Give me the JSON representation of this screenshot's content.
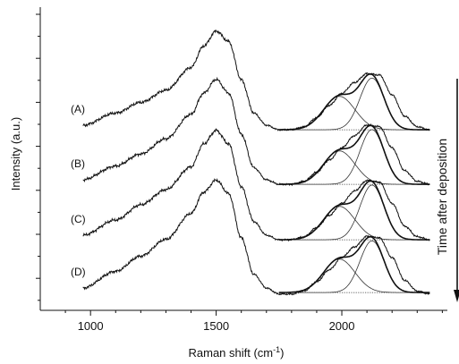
{
  "chart_data": {
    "type": "line",
    "title": "",
    "xlabel": "Raman shift (cm",
    "xlabel_sup": "-1",
    "xlabel_close": ")",
    "ylabel": "Intensity (a.u.)",
    "xlim": [
      800,
      2420
    ],
    "x_ticks": [
      1000,
      1500,
      2000
    ],
    "x_tick_labels": [
      "1000",
      "1500",
      "2000"
    ],
    "y_ticks_show_labels": false,
    "grid": false,
    "annotation": "Time after deposition",
    "annotation_arrow": "down",
    "series": [
      {
        "name": "(A)",
        "x": [
          970,
          1100,
          1200,
          1300,
          1400,
          1450,
          1500,
          1550,
          1600,
          1650,
          1700,
          1750,
          1800,
          1850,
          1900,
          1950,
          2000,
          2050,
          2100,
          2150,
          2200,
          2250,
          2300,
          2350
        ],
        "y": [
          0.0,
          0.08,
          0.15,
          0.23,
          0.38,
          0.52,
          0.62,
          0.55,
          0.3,
          0.08,
          0.0,
          -0.03,
          -0.03,
          -0.01,
          0.05,
          0.13,
          0.21,
          0.28,
          0.34,
          0.33,
          0.2,
          0.06,
          -0.01,
          -0.03
        ],
        "fit_peaks": [
          {
            "center": 1990,
            "amplitude": 0.19
          },
          {
            "center": 2120,
            "amplitude": 0.31
          }
        ]
      },
      {
        "name": "(B)",
        "x": [
          970,
          1100,
          1200,
          1300,
          1400,
          1450,
          1500,
          1550,
          1600,
          1650,
          1700,
          1750,
          1800,
          1850,
          1900,
          1950,
          2000,
          2050,
          2100,
          2150,
          2200,
          2250,
          2300,
          2350
        ],
        "y": [
          0.0,
          0.09,
          0.17,
          0.27,
          0.43,
          0.57,
          0.66,
          0.57,
          0.3,
          0.08,
          0.0,
          -0.03,
          -0.03,
          -0.01,
          0.05,
          0.13,
          0.21,
          0.29,
          0.36,
          0.35,
          0.21,
          0.06,
          -0.01,
          -0.03
        ],
        "fit_peaks": [
          {
            "center": 1990,
            "amplitude": 0.19
          },
          {
            "center": 2120,
            "amplitude": 0.33
          }
        ]
      },
      {
        "name": "(C)",
        "x": [
          970,
          1100,
          1200,
          1300,
          1400,
          1450,
          1500,
          1550,
          1600,
          1650,
          1700,
          1750,
          1800,
          1850,
          1900,
          1950,
          2000,
          2050,
          2100,
          2150,
          2200,
          2250,
          2300,
          2350
        ],
        "y": [
          0.0,
          0.1,
          0.2,
          0.3,
          0.45,
          0.6,
          0.69,
          0.6,
          0.32,
          0.09,
          0.0,
          -0.03,
          -0.03,
          -0.01,
          0.05,
          0.13,
          0.21,
          0.29,
          0.36,
          0.35,
          0.21,
          0.06,
          -0.01,
          -0.03
        ],
        "fit_peaks": [
          {
            "center": 1990,
            "amplitude": 0.19
          },
          {
            "center": 2120,
            "amplitude": 0.33
          }
        ]
      },
      {
        "name": "(D)",
        "x": [
          970,
          1100,
          1200,
          1300,
          1400,
          1450,
          1500,
          1550,
          1600,
          1650,
          1700,
          1750,
          1800,
          1850,
          1900,
          1950,
          2000,
          2050,
          2100,
          2150,
          2200,
          2250,
          2300,
          2350
        ],
        "y": [
          0.0,
          0.11,
          0.21,
          0.32,
          0.49,
          0.63,
          0.71,
          0.62,
          0.33,
          0.09,
          0.0,
          -0.04,
          -0.04,
          -0.02,
          0.04,
          0.12,
          0.2,
          0.27,
          0.34,
          0.33,
          0.2,
          0.05,
          -0.02,
          -0.04
        ],
        "fit_peaks": [
          {
            "center": 1990,
            "amplitude": 0.19
          },
          {
            "center": 2120,
            "amplitude": 0.31
          }
        ]
      }
    ]
  }
}
